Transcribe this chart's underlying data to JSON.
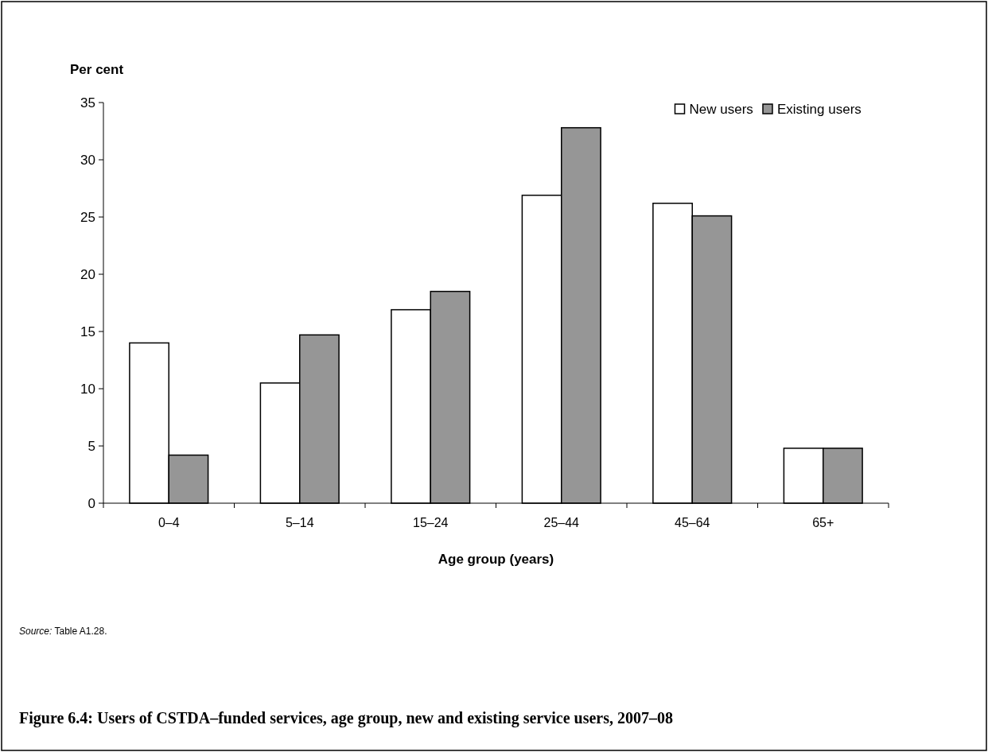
{
  "chart_data": {
    "type": "bar",
    "title": "Figure 6.4: Users of CSTDA–funded services, age group, new and existing service users,  2007–08",
    "xlabel": "Age group (years)",
    "ylabel": "Per cent",
    "categories": [
      "0–4",
      "5–14",
      "15–24",
      "25–44",
      "45–64",
      "65+"
    ],
    "series": [
      {
        "name": "New users",
        "color": "#ffffff",
        "values": [
          14.0,
          10.5,
          16.9,
          26.9,
          26.2,
          4.8
        ]
      },
      {
        "name": "Existing users",
        "color": "#969696",
        "values": [
          4.2,
          14.7,
          18.5,
          32.8,
          25.1,
          4.8
        ]
      }
    ],
    "ylim": [
      0,
      35
    ],
    "yticks": [
      0,
      5,
      10,
      15,
      20,
      25,
      30,
      35
    ],
    "grid": false,
    "legend": "top right",
    "annotations": [
      "Source: Table A1.28."
    ]
  }
}
